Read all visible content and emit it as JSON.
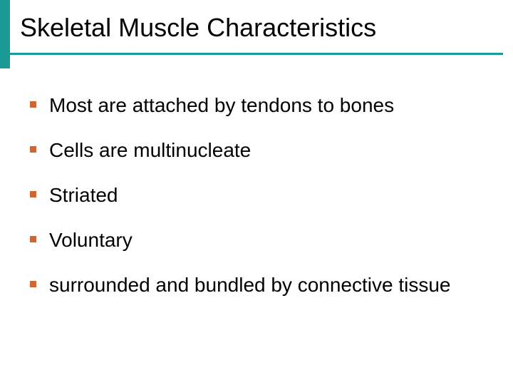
{
  "slide": {
    "title": "Skeletal Muscle Characteristics",
    "bullets": [
      "Most are attached by tendons to bones",
      "Cells are multinucleate",
      "Striated",
      "Voluntary",
      "surrounded and bundled by connective tissue"
    ]
  },
  "styling": {
    "accent_color": "#1a9a94",
    "bullet_color": "#cc6633",
    "text_color": "#000000",
    "background_color": "#ffffff",
    "title_fontsize": 36,
    "body_fontsize": 28,
    "bullet_size": 9,
    "left_accent_width": 14,
    "left_accent_height": 96,
    "underline_height": 3
  }
}
